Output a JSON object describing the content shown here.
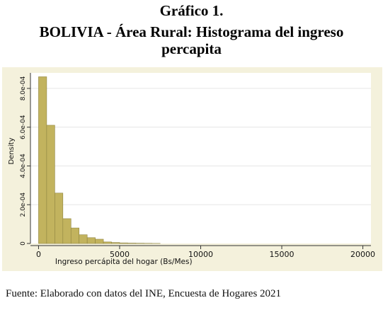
{
  "figure": {
    "label": "Gráfico 1.",
    "title_line1": "BOLIVIA - Área Rural: Histograma del ingreso",
    "title_line2": "percapita",
    "source": "Fuente: Elaborado con datos del INE, Encuesta de Hogares 2021"
  },
  "colors": {
    "bar_fill": "#c2b35e",
    "bar_stroke": "#8f8440",
    "plot_background": "#ffffff",
    "outer_background": "#f4f1dc",
    "grid": "#e6e6e6"
  },
  "chart_data": {
    "type": "bar",
    "subtype": "histogram",
    "xlabel": "Ingreso percápita del hogar (Bs/Mes)",
    "ylabel": "Density",
    "xlim": [
      -500,
      20500
    ],
    "ylim": [
      0,
      0.00088
    ],
    "x_ticks": [
      0,
      5000,
      10000,
      15000,
      20000
    ],
    "x_tick_labels": [
      "0",
      "5000",
      "10000",
      "15000",
      "20000"
    ],
    "y_ticks": [
      0,
      0.0002,
      0.0004,
      0.0006,
      0.0008
    ],
    "y_tick_labels": [
      "0",
      "2.0e-04",
      "4.0e-04",
      "6.0e-04",
      "8.0e-04"
    ],
    "grid": true,
    "bin_width": 500,
    "bin_starts": [
      0,
      500,
      1000,
      1500,
      2000,
      2500,
      3000,
      3500,
      4000,
      4500,
      5000,
      5500,
      6000,
      6500,
      7000
    ],
    "values": [
      0.00086,
      0.00061,
      0.00026,
      0.000128,
      8e-05,
      4.5e-05,
      3e-05,
      2.2e-05,
      8e-06,
      5e-06,
      3e-06,
      2e-06,
      1.5e-06,
      1e-06,
      5e-07
    ]
  }
}
